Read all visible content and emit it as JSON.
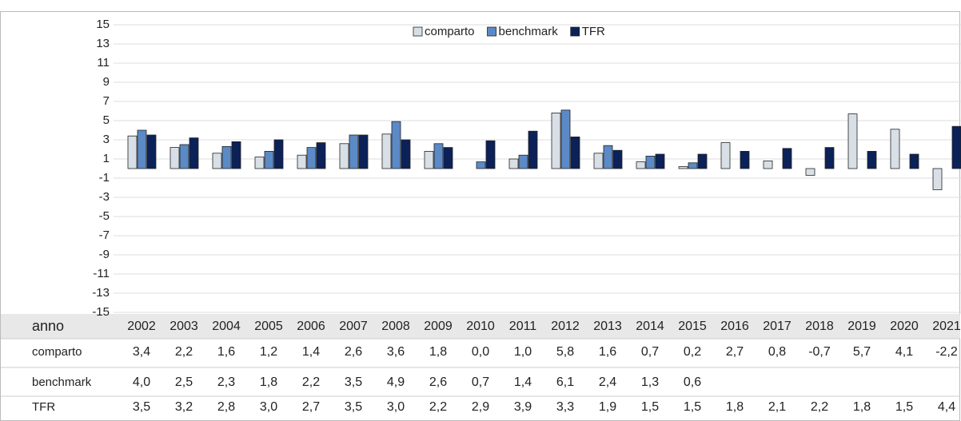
{
  "chart_data": {
    "type": "bar",
    "x_label": "anno",
    "categories": [
      "2002",
      "2003",
      "2004",
      "2005",
      "2006",
      "2007",
      "2008",
      "2009",
      "2010",
      "2011",
      "2012",
      "2013",
      "2014",
      "2015",
      "2016",
      "2017",
      "2018",
      "2019",
      "2020",
      "2021"
    ],
    "series": [
      {
        "name": "comparto",
        "color": "#d9dfe7",
        "values": [
          3.4,
          2.2,
          1.6,
          1.2,
          1.4,
          2.6,
          3.6,
          1.8,
          0.0,
          1.0,
          5.8,
          1.6,
          0.7,
          0.2,
          2.7,
          0.8,
          -0.7,
          5.7,
          4.1,
          -2.2
        ],
        "value_labels": [
          "3,4",
          "2,2",
          "1,6",
          "1,2",
          "1,4",
          "2,6",
          "3,6",
          "1,8",
          "0,0",
          "1,0",
          "5,8",
          "1,6",
          "0,7",
          "0,2",
          "2,7",
          "0,8",
          "-0,7",
          "5,7",
          "4,1",
          "-2,2"
        ]
      },
      {
        "name": "benchmark",
        "color": "#5b8ac6",
        "values": [
          4.0,
          2.5,
          2.3,
          1.8,
          2.2,
          3.5,
          4.9,
          2.6,
          0.7,
          1.4,
          6.1,
          2.4,
          1.3,
          0.6,
          null,
          null,
          null,
          null,
          null,
          null
        ],
        "value_labels": [
          "4,0",
          "2,5",
          "2,3",
          "1,8",
          "2,2",
          "3,5",
          "4,9",
          "2,6",
          "0,7",
          "1,4",
          "6,1",
          "2,4",
          "1,3",
          "0,6",
          null,
          null,
          null,
          null,
          null,
          null
        ]
      },
      {
        "name": "TFR",
        "color": "#0b2158",
        "values": [
          3.5,
          3.2,
          2.8,
          3.0,
          2.7,
          3.5,
          3.0,
          2.2,
          2.9,
          3.9,
          3.3,
          1.9,
          1.5,
          1.5,
          1.8,
          2.1,
          2.2,
          1.8,
          1.5,
          4.4
        ],
        "value_labels": [
          "3,5",
          "3,2",
          "2,8",
          "3,0",
          "2,7",
          "3,5",
          "3,0",
          "2,2",
          "2,9",
          "3,9",
          "3,3",
          "1,9",
          "1,5",
          "1,5",
          "1,8",
          "2,1",
          "2,2",
          "1,8",
          "1,5",
          "4,4"
        ]
      }
    ],
    "ylim": [
      -15,
      15
    ],
    "yticks": [
      -15,
      -13,
      -11,
      -9,
      -7,
      -5,
      -3,
      -1,
      1,
      3,
      5,
      7,
      9,
      11,
      13,
      15
    ],
    "grid": true
  }
}
